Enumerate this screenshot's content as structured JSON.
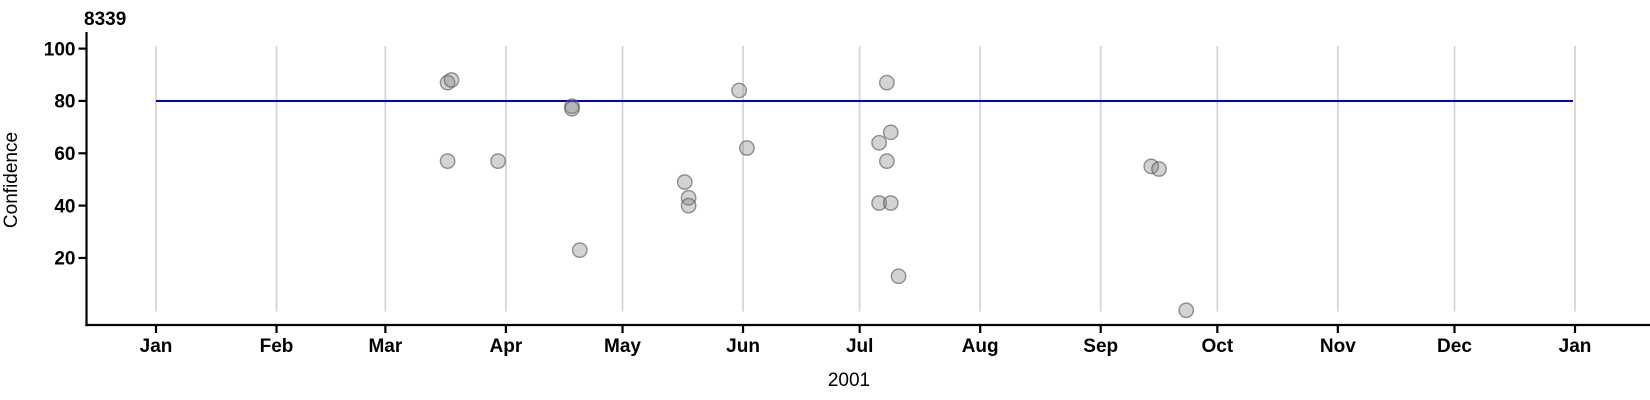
{
  "chart_data": {
    "type": "scatter",
    "title": "8339",
    "xlabel": "2001",
    "ylabel": "Confidence",
    "x_axis": {
      "tick_labels": [
        "Jan",
        "Feb",
        "Mar",
        "Apr",
        "May",
        "Jun",
        "Jul",
        "Aug",
        "Sep",
        "Oct",
        "Nov",
        "Dec",
        "Jan"
      ],
      "range_dates": [
        "2001-01-01",
        "2002-01-01"
      ]
    },
    "y_axis": {
      "ticks": [
        20,
        40,
        60,
        80,
        100
      ],
      "range": [
        -5.5,
        106.5
      ]
    },
    "grid": "vertical month gridlines only",
    "legend": "none",
    "reference_line": {
      "value": 80
    },
    "points": [
      {
        "date": "2001-03-17",
        "value": 87
      },
      {
        "date": "2001-03-18",
        "value": 88
      },
      {
        "date": "2001-03-17",
        "value": 57
      },
      {
        "date": "2001-03-30",
        "value": 57
      },
      {
        "date": "2001-04-18",
        "value": 78
      },
      {
        "date": "2001-04-18",
        "value": 77
      },
      {
        "date": "2001-04-20",
        "value": 23
      },
      {
        "date": "2001-05-17",
        "value": 49
      },
      {
        "date": "2001-05-18",
        "value": 43
      },
      {
        "date": "2001-05-18",
        "value": 40
      },
      {
        "date": "2001-05-31",
        "value": 84
      },
      {
        "date": "2001-06-02",
        "value": 62
      },
      {
        "date": "2001-07-06",
        "value": 64
      },
      {
        "date": "2001-07-06",
        "value": 41
      },
      {
        "date": "2001-07-08",
        "value": 87
      },
      {
        "date": "2001-07-09",
        "value": 68
      },
      {
        "date": "2001-07-08",
        "value": 57
      },
      {
        "date": "2001-07-09",
        "value": 41
      },
      {
        "date": "2001-07-11",
        "value": 13
      },
      {
        "date": "2001-09-14",
        "value": 55
      },
      {
        "date": "2001-09-16",
        "value": 54
      },
      {
        "date": "2001-09-23",
        "value": 0
      }
    ],
    "colors": {
      "axis": "#000000",
      "grid": "#d4d4d4",
      "reference_line": "#0101cd",
      "point_fill": "rgba(128,128,128,0.35)",
      "point_stroke": "rgba(80,80,80,0.6)"
    },
    "point_radius": 7.2
  }
}
